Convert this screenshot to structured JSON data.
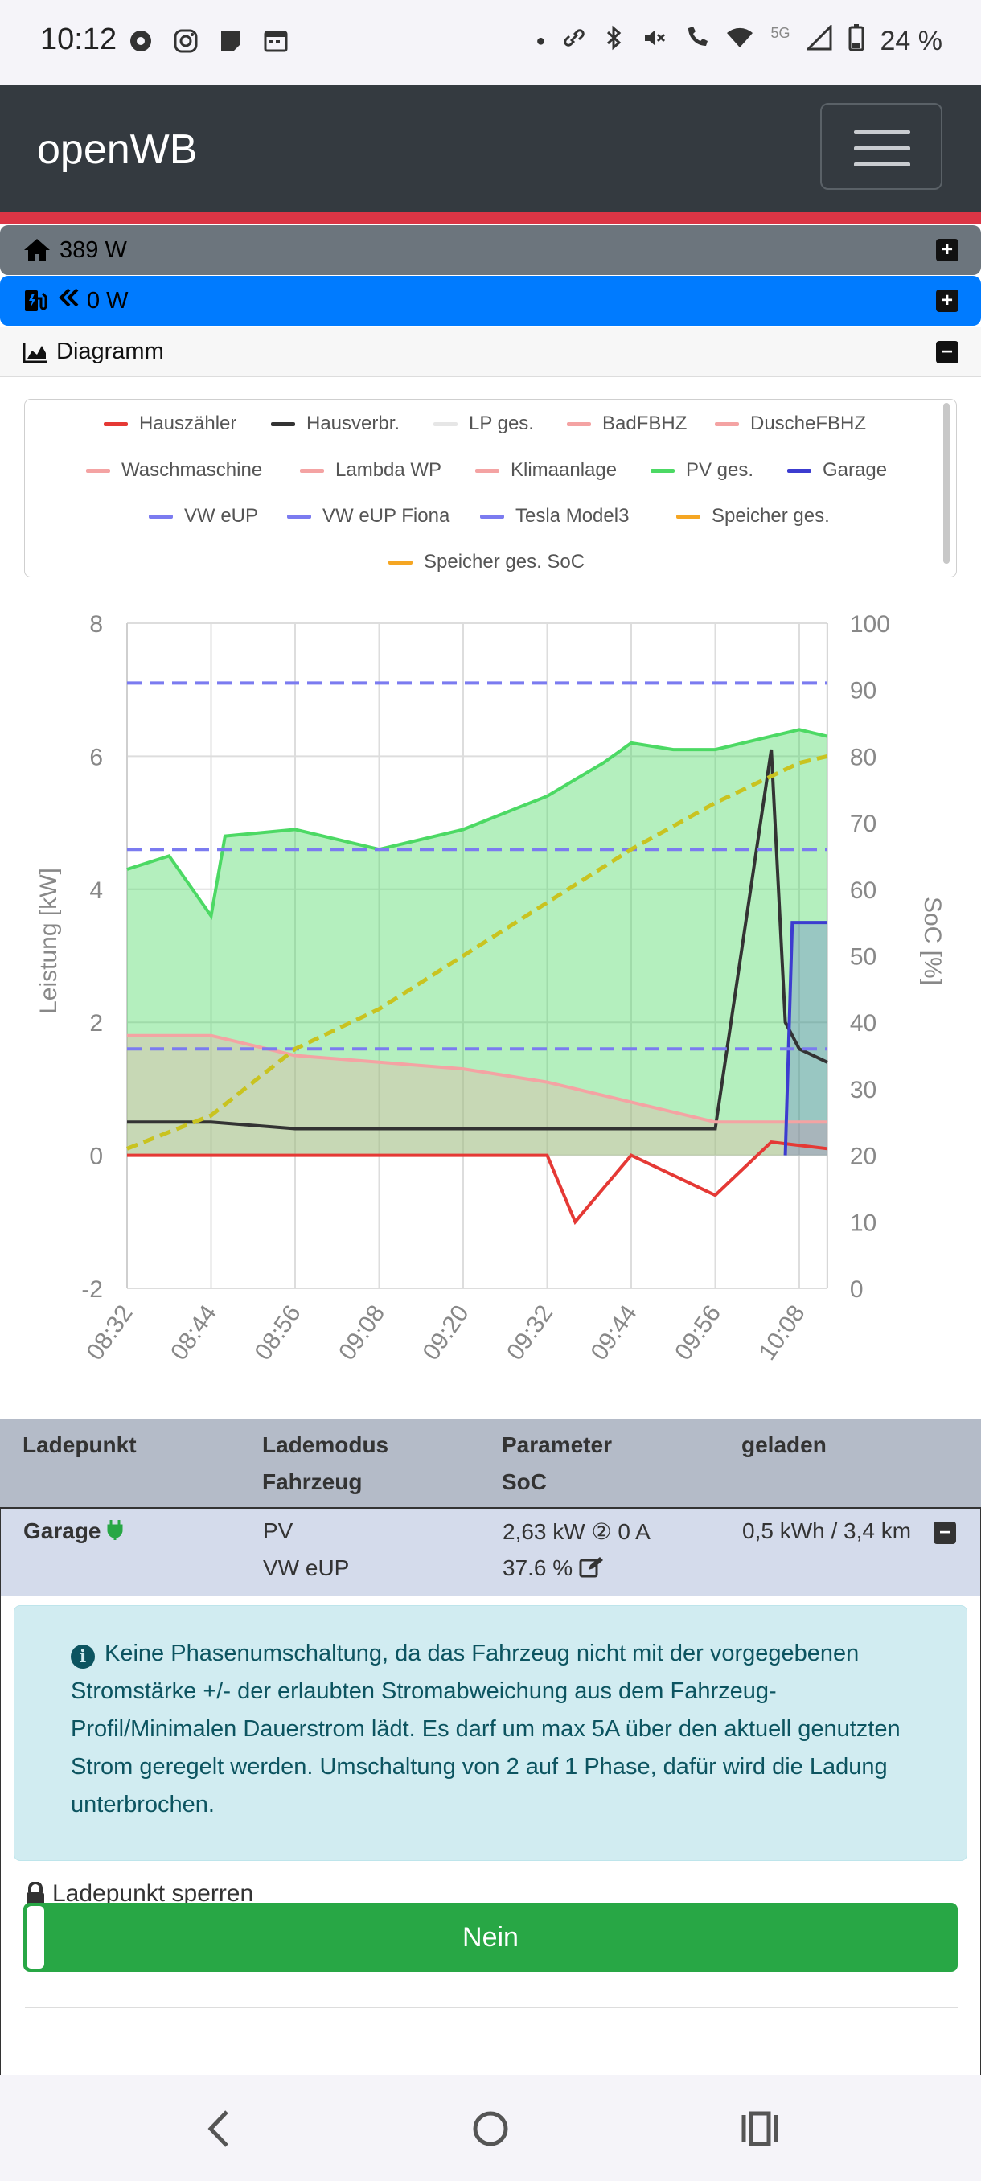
{
  "status_bar": {
    "time": "10:12",
    "battery": "24 %",
    "network": "5G"
  },
  "navbar": {
    "brand": "openWB"
  },
  "panels": {
    "house": {
      "value": "389 W",
      "expand": "+"
    },
    "charge": {
      "value": "0 W",
      "expand": "+"
    },
    "diagram": {
      "label": "Diagramm",
      "collapse": "−"
    }
  },
  "legend": [
    {
      "label": "Hauszähler",
      "color": "#e53935"
    },
    {
      "label": "Hausverbr.",
      "color": "#333333"
    },
    {
      "label": "LP ges.",
      "color": "#e6e6e6"
    },
    {
      "label": "BadFBHZ",
      "color": "#f4a3a3"
    },
    {
      "label": "DuscheFBHZ",
      "color": "#f4a3a3"
    },
    {
      "label": "Waschmaschine",
      "color": "#f4a3a3"
    },
    {
      "label": "Lambda WP",
      "color": "#f4a3a3"
    },
    {
      "label": "Klimaanlage",
      "color": "#f4a3a3"
    },
    {
      "label": "PV ges.",
      "color": "#4cd964"
    },
    {
      "label": "Garage",
      "color": "#3c3cd0"
    },
    {
      "label": "VW eUP",
      "color": "#7b7bf0"
    },
    {
      "label": "VW eUP Fiona",
      "color": "#7b7bf0"
    },
    {
      "label": "Tesla Model3",
      "color": "#7b7bf0"
    },
    {
      "label": "Speicher ges.",
      "color": "#f5a623"
    },
    {
      "label": "Speicher ges. SoC",
      "color": "#f5a623"
    }
  ],
  "chart_data": {
    "type": "line",
    "ylabel": "Leistung [kW]",
    "y2label": "SoC [%]",
    "ylim": [
      -2,
      8
    ],
    "y2lim": [
      0,
      100
    ],
    "yticks": [
      "8",
      "6",
      "4",
      "2",
      "0",
      "-2"
    ],
    "y2ticks": [
      "100",
      "90",
      "80",
      "70",
      "60",
      "50",
      "40",
      "30",
      "20",
      "10",
      "0"
    ],
    "xticks": [
      "08:32",
      "08:44",
      "08:56",
      "09:08",
      "09:20",
      "09:32",
      "09:44",
      "09:56",
      "10:08"
    ],
    "grid": true,
    "series": [
      {
        "name": "PV ges.",
        "color": "#4cd964",
        "x": [
          "08:32",
          "08:38",
          "08:44",
          "08:46",
          "08:56",
          "09:08",
          "09:20",
          "09:32",
          "09:40",
          "09:44",
          "09:50",
          "09:56",
          "10:04",
          "10:08",
          "10:12"
        ],
        "values": [
          4.3,
          4.5,
          3.6,
          4.8,
          4.9,
          4.6,
          4.9,
          5.4,
          5.9,
          6.2,
          6.1,
          6.1,
          6.3,
          6.4,
          6.3
        ]
      },
      {
        "name": "Hauszähler",
        "color": "#e53935",
        "x": [
          "08:32",
          "08:56",
          "09:32",
          "09:36",
          "09:44",
          "09:56",
          "10:04",
          "10:12"
        ],
        "values": [
          0.0,
          0.0,
          0.0,
          -1.0,
          0.0,
          -0.6,
          0.2,
          0.1
        ]
      },
      {
        "name": "Hausverbr.",
        "color": "#333333",
        "x": [
          "08:32",
          "08:44",
          "08:56",
          "09:08",
          "09:20",
          "09:32",
          "09:44",
          "09:56",
          "10:04",
          "10:06",
          "10:08",
          "10:12"
        ],
        "values": [
          0.5,
          0.5,
          0.4,
          0.4,
          0.4,
          0.4,
          0.4,
          0.4,
          6.1,
          2.0,
          1.6,
          1.4
        ]
      },
      {
        "name": "Waschmaschine",
        "color": "#f4a3a3",
        "x": [
          "08:32",
          "08:44",
          "08:56",
          "09:08",
          "09:20",
          "09:32",
          "09:44",
          "09:56",
          "10:08",
          "10:12"
        ],
        "values": [
          1.8,
          1.8,
          1.5,
          1.4,
          1.3,
          1.1,
          0.8,
          0.5,
          0.5,
          0.5
        ]
      },
      {
        "name": "Garage",
        "color": "#3c3cd0",
        "x": [
          "10:06",
          "10:07",
          "10:12"
        ],
        "values": [
          0.0,
          3.5,
          3.5
        ]
      },
      {
        "name": "VW eUP",
        "color": "#7b7bf0",
        "x": [
          "08:32",
          "10:12"
        ],
        "values": [
          1.6,
          1.6
        ]
      },
      {
        "name": "VW eUP Fiona",
        "color": "#7b7bf0",
        "x": [
          "08:32",
          "10:12"
        ],
        "values": [
          4.6,
          4.6
        ]
      },
      {
        "name": "Tesla Model3",
        "color": "#7b7bf0",
        "x": [
          "08:32",
          "10:12"
        ],
        "values": [
          7.1,
          7.1
        ]
      },
      {
        "name": "Speicher ges. SoC",
        "color": "#c9c320",
        "x": [
          "08:32",
          "08:44",
          "08:56",
          "09:08",
          "09:20",
          "09:32",
          "09:44",
          "09:56",
          "10:08",
          "10:12"
        ],
        "values": [
          21,
          26,
          36,
          42,
          50,
          58,
          66,
          73,
          79,
          80
        ]
      }
    ]
  },
  "table": {
    "headers": {
      "c1": "Ladepunkt",
      "c2a": "Lademodus",
      "c2b": "Fahrzeug",
      "c3a": "Parameter",
      "c3b": "SoC",
      "c4": "geladen"
    },
    "row": {
      "name": "Garage",
      "mode": "PV",
      "vehicle": "VW eUP",
      "power": "2,63 kW",
      "phase": "②",
      "current": "0 A",
      "soc": "37.6 %",
      "charged": "0,5 kWh / 3,4 km",
      "collapse": "−"
    }
  },
  "alert": {
    "text": "Keine Phasenumschaltung, da das Fahrzeug nicht mit der vorgegebenen Stromstärke +/- der erlaubten Stromabweichung aus dem Fahrzeug-Profil/Minimalen Dauerstrom lädt. Es darf um max 5A über den aktuell genutzten Strom geregelt werden. Umschaltung von 2 auf 1 Phase, dafür wird die Ladung unterbrochen."
  },
  "lock": {
    "label": "Ladepunkt sperren",
    "value": "Nein"
  }
}
